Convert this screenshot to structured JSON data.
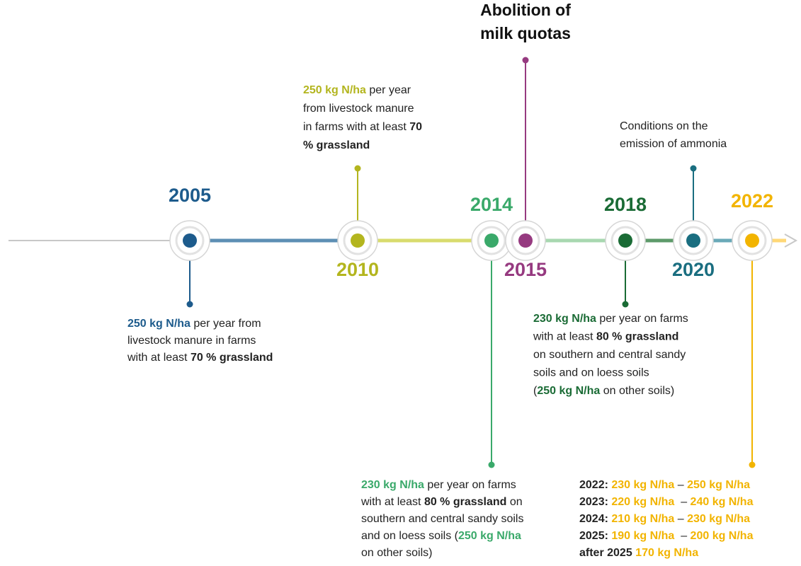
{
  "events": [
    {
      "year": "2005",
      "color": "#1d5b8c",
      "description": [
        [
          {
            "text": "250 kg N/ha",
            "style": "accent"
          },
          {
            "text": " per year from",
            "style": "plain"
          }
        ],
        [
          {
            "text": "livestock manure in farms",
            "style": "plain"
          }
        ],
        [
          {
            "text": "with at least ",
            "style": "plain"
          },
          {
            "text": "70 % grassland",
            "style": "bold"
          }
        ]
      ]
    },
    {
      "year": "2010",
      "color": "#b3b51e",
      "description": [
        [
          {
            "text": "250 kg N/ha",
            "style": "accent"
          },
          {
            "text": " per year",
            "style": "plain"
          }
        ],
        [
          {
            "text": "from livestock manure",
            "style": "plain"
          }
        ],
        [
          {
            "text": "in farms with at least ",
            "style": "plain"
          },
          {
            "text": "70",
            "style": "bold"
          }
        ],
        [
          {
            "text": "% grassland",
            "style": "bold"
          }
        ]
      ]
    },
    {
      "year": "2014",
      "color": "#3aa96a",
      "description": [
        [
          {
            "text": "230 kg N/ha",
            "style": "accent"
          },
          {
            "text": " per year on farms",
            "style": "plain"
          }
        ],
        [
          {
            "text": "with at least ",
            "style": "plain"
          },
          {
            "text": "80 % grassland",
            "style": "bold"
          },
          {
            "text": " on",
            "style": "plain"
          }
        ],
        [
          {
            "text": "southern and central sandy soils",
            "style": "plain"
          }
        ],
        [
          {
            "text": "and on loess soils (",
            "style": "plain"
          },
          {
            "text": "250 kg N/ha",
            "style": "accent"
          }
        ],
        [
          {
            "text": "on other soils)",
            "style": "plain"
          }
        ]
      ]
    },
    {
      "year": "2015",
      "color": "#963a80",
      "description": [
        [
          {
            "text": "Abolition of",
            "style": "headline"
          }
        ],
        [
          {
            "text": "milk quotas",
            "style": "headline"
          }
        ]
      ]
    },
    {
      "year": "2018",
      "color": "#1a6b35",
      "description": [
        [
          {
            "text": "230 kg N/ha",
            "style": "accent"
          },
          {
            "text": " per year on farms",
            "style": "plain"
          }
        ],
        [
          {
            "text": "with at least ",
            "style": "plain"
          },
          {
            "text": "80 % grassland",
            "style": "bold"
          }
        ],
        [
          {
            "text": "on southern and central sandy",
            "style": "plain"
          }
        ],
        [
          {
            "text": "soils and on loess soils",
            "style": "plain"
          }
        ],
        [
          {
            "text": "(",
            "style": "plain"
          },
          {
            "text": "250 kg N/ha",
            "style": "accent"
          },
          {
            "text": " on other soils)",
            "style": "plain"
          }
        ]
      ]
    },
    {
      "year": "2020",
      "color": "#1a6e80",
      "description": [
        [
          {
            "text": "Conditions on the",
            "style": "plain"
          }
        ],
        [
          {
            "text": "emission of ammonia",
            "style": "plain"
          }
        ]
      ]
    },
    {
      "year": "2022",
      "color": "#f2b400",
      "description": [
        [
          {
            "text": "2022: ",
            "style": "bold"
          },
          {
            "text": "230 kg N/ha",
            "style": "accent"
          },
          {
            "text": " – ",
            "style": "plain"
          },
          {
            "text": "250 kg N/ha",
            "style": "accent"
          }
        ],
        [
          {
            "text": "2023: ",
            "style": "bold"
          },
          {
            "text": "220 kg N/ha",
            "style": "accent"
          },
          {
            "text": "  – ",
            "style": "plain"
          },
          {
            "text": "240 kg N/ha",
            "style": "accent"
          }
        ],
        [
          {
            "text": "2024: ",
            "style": "bold"
          },
          {
            "text": "210 kg N/ha",
            "style": "accent"
          },
          {
            "text": " – ",
            "style": "plain"
          },
          {
            "text": "230 kg N/ha",
            "style": "accent"
          }
        ],
        [
          {
            "text": "2025: ",
            "style": "bold"
          },
          {
            "text": "190 kg N/ha",
            "style": "accent"
          },
          {
            "text": "  – ",
            "style": "plain"
          },
          {
            "text": "200 kg N/ha",
            "style": "accent"
          }
        ],
        [
          {
            "text": "after 2025 ",
            "style": "bold"
          },
          {
            "text": "170 kg N/ha",
            "style": "accent"
          }
        ]
      ]
    }
  ]
}
